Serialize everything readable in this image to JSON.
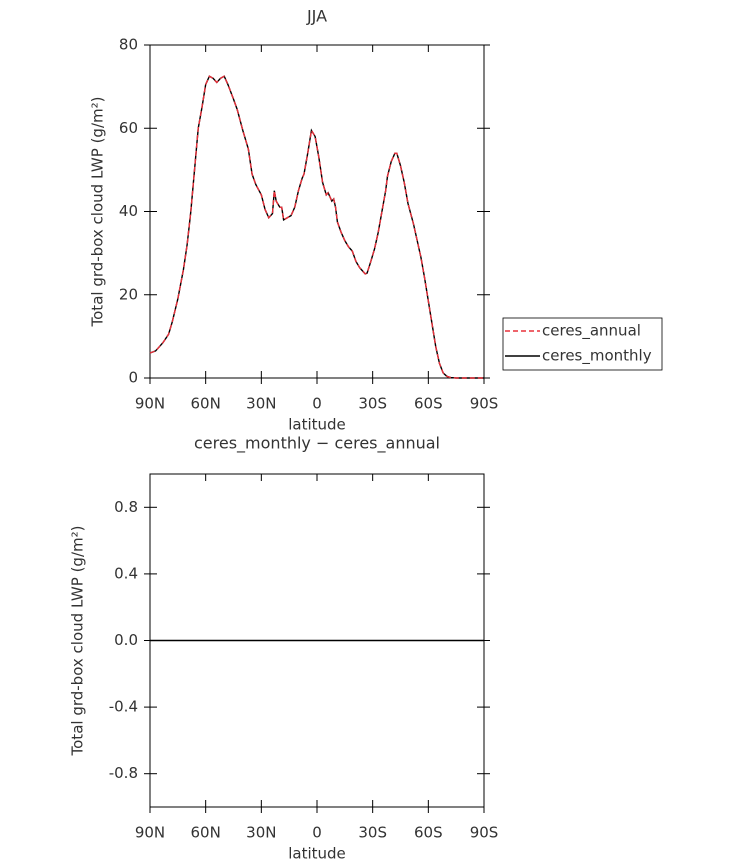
{
  "chart_data": [
    {
      "type": "line",
      "title": "JJA",
      "x_label": "latitude",
      "y_label": "Total grd-box cloud LWP (g/m²)",
      "x": [
        90,
        87,
        85,
        83,
        80,
        78,
        75,
        72,
        70,
        68,
        66,
        64,
        62,
        60,
        58,
        56,
        54,
        52,
        50,
        48,
        45,
        43,
        40,
        37,
        35,
        33,
        30,
        28,
        26,
        24,
        23,
        22,
        20,
        19,
        18,
        16,
        14,
        12,
        10,
        8,
        7,
        5,
        3,
        1,
        -1,
        -3,
        -5,
        -6,
        -7,
        -8,
        -9,
        -10,
        -11,
        -13,
        -15,
        -17,
        -19,
        -21,
        -23,
        -25,
        -26,
        -27,
        -29,
        -31,
        -33,
        -35,
        -37,
        -38,
        -40,
        -42,
        -43,
        -45,
        -47,
        -49,
        -52,
        -54,
        -56,
        -58,
        -60,
        -62,
        -64,
        -66,
        -68,
        -70,
        -72,
        -75,
        -80,
        -85,
        -90
      ],
      "series": [
        {
          "name": "ceres_annual",
          "color": "#e8303a",
          "line_style": "dashed",
          "values": [
            6,
            6.5,
            7.5,
            8.5,
            10.5,
            13.5,
            19,
            26,
            32,
            40,
            50,
            60,
            65,
            70.5,
            72.5,
            72,
            71,
            72,
            72.5,
            70.5,
            67,
            64.5,
            59.5,
            55,
            49,
            46.5,
            44,
            40.5,
            38.5,
            39.5,
            45,
            42.5,
            41,
            41,
            38,
            38.5,
            39,
            41,
            45,
            48,
            49,
            54,
            59.5,
            58,
            53,
            47,
            44,
            44.5,
            43.5,
            42.5,
            43,
            41,
            37.5,
            35,
            33,
            31.5,
            30.5,
            28,
            26.5,
            25.5,
            25,
            25.2,
            28,
            31,
            35,
            40,
            45,
            48.5,
            52,
            54,
            54,
            51,
            47,
            42,
            37,
            33,
            29,
            24,
            18.5,
            13,
            7.5,
            3.5,
            1.2,
            0.4,
            0.1,
            0,
            0,
            0,
            0
          ]
        },
        {
          "name": "ceres_monthly",
          "color": "#000000",
          "line_style": "solid",
          "values": [
            6,
            6.5,
            7.5,
            8.5,
            10.5,
            13.5,
            19,
            26,
            32,
            40,
            50,
            60,
            65,
            70.5,
            72.5,
            72,
            71,
            72,
            72.5,
            70.5,
            67,
            64.5,
            59.5,
            55,
            49,
            46.5,
            44,
            40.5,
            38.5,
            39.5,
            45,
            42.5,
            41,
            41,
            38,
            38.5,
            39,
            41,
            45,
            48,
            49,
            54,
            59.5,
            58,
            53,
            47,
            44,
            44.5,
            43.5,
            42.5,
            43,
            41,
            37.5,
            35,
            33,
            31.5,
            30.5,
            28,
            26.5,
            25.5,
            25,
            25.2,
            28,
            31,
            35,
            40,
            45,
            48.5,
            52,
            54,
            54,
            51,
            47,
            42,
            37,
            33,
            29,
            24,
            18.5,
            13,
            7.5,
            3.5,
            1.2,
            0.4,
            0.1,
            0,
            0,
            0,
            0
          ]
        }
      ],
      "xlim": [
        90,
        -90
      ],
      "xticks": [
        {
          "value": 90,
          "label": "90N"
        },
        {
          "value": 60,
          "label": "60N"
        },
        {
          "value": 30,
          "label": "30N"
        },
        0,
        {
          "value": -30,
          "label": "30S"
        },
        {
          "value": -60,
          "label": "60S"
        },
        {
          "value": -90,
          "label": "90S"
        }
      ],
      "ylim": [
        0,
        80
      ],
      "yticks": [
        0,
        20,
        40,
        60,
        80
      ],
      "legend": "right"
    },
    {
      "type": "line",
      "title": "ceres_monthly − ceres_annual",
      "x_label": "latitude",
      "y_label": "Total grd-box cloud LWP (g/m²)",
      "x": [
        90,
        0,
        -90
      ],
      "values": [
        0,
        0,
        0
      ],
      "color": "#000000",
      "xlim": [
        90,
        -90
      ],
      "xticks": [
        {
          "value": 90,
          "label": "90N"
        },
        {
          "value": 60,
          "label": "60N"
        },
        {
          "value": 30,
          "label": "30N"
        },
        0,
        {
          "value": -30,
          "label": "30S"
        },
        {
          "value": -60,
          "label": "60S"
        },
        {
          "value": -90,
          "label": "90S"
        }
      ],
      "ylim": [
        -1,
        1
      ],
      "yticks": [
        -0.8,
        -0.4,
        {
          "value": 0,
          "label": "0.0"
        },
        0.4,
        0.8
      ]
    }
  ]
}
